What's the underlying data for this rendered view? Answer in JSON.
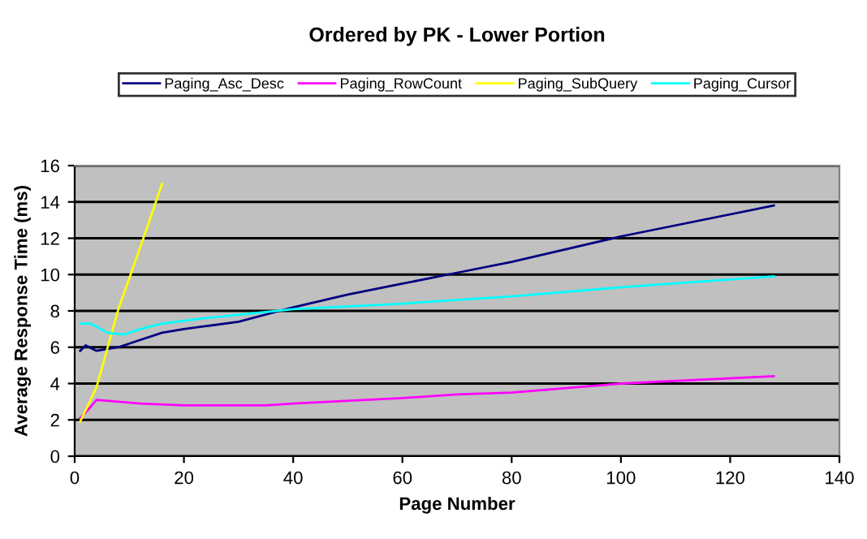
{
  "chart_data": {
    "type": "line",
    "title": "Ordered by PK - Lower Portion",
    "xlabel": "Page Number",
    "ylabel": "Average Response Time (ms)",
    "xlim": [
      0,
      140
    ],
    "xticks": [
      0,
      20,
      40,
      60,
      80,
      100,
      120,
      140
    ],
    "ylim": [
      0,
      16
    ],
    "yticks": [
      0,
      2,
      4,
      6,
      8,
      10,
      12,
      14,
      16
    ],
    "grid": "y",
    "legend": "top",
    "marker": "none",
    "line_style": "solid",
    "series": [
      {
        "name": "Paging_Asc_Desc",
        "color": "#000080",
        "x": [
          1,
          2,
          4,
          6,
          8,
          12,
          16,
          20,
          30,
          40,
          50,
          60,
          70,
          80,
          100,
          128
        ],
        "values": [
          5.8,
          6.1,
          5.8,
          5.9,
          6.0,
          6.4,
          6.8,
          7.0,
          7.4,
          8.2,
          8.9,
          9.5,
          10.1,
          10.7,
          12.1,
          13.8
        ]
      },
      {
        "name": "Paging_RowCount",
        "color": "#ff00ff",
        "x": [
          1,
          2,
          4,
          8,
          12,
          20,
          35,
          40,
          60,
          70,
          80,
          100,
          128
        ],
        "values": [
          2.1,
          2.4,
          3.1,
          3.0,
          2.9,
          2.8,
          2.8,
          2.9,
          3.2,
          3.4,
          3.5,
          4.0,
          4.4
        ]
      },
      {
        "name": "Paging_SubQuery",
        "color": "#ffff00",
        "x": [
          1,
          4,
          8,
          12,
          16
        ],
        "values": [
          1.9,
          3.8,
          8.1,
          11.5,
          15.0
        ]
      },
      {
        "name": "Paging_Cursor",
        "color": "#00ffff",
        "x": [
          1,
          3,
          6,
          9,
          12,
          16,
          24,
          40,
          60,
          80,
          100,
          128
        ],
        "values": [
          7.3,
          7.3,
          6.8,
          6.7,
          7.0,
          7.3,
          7.6,
          8.1,
          8.4,
          8.8,
          9.3,
          9.9
        ]
      }
    ]
  }
}
